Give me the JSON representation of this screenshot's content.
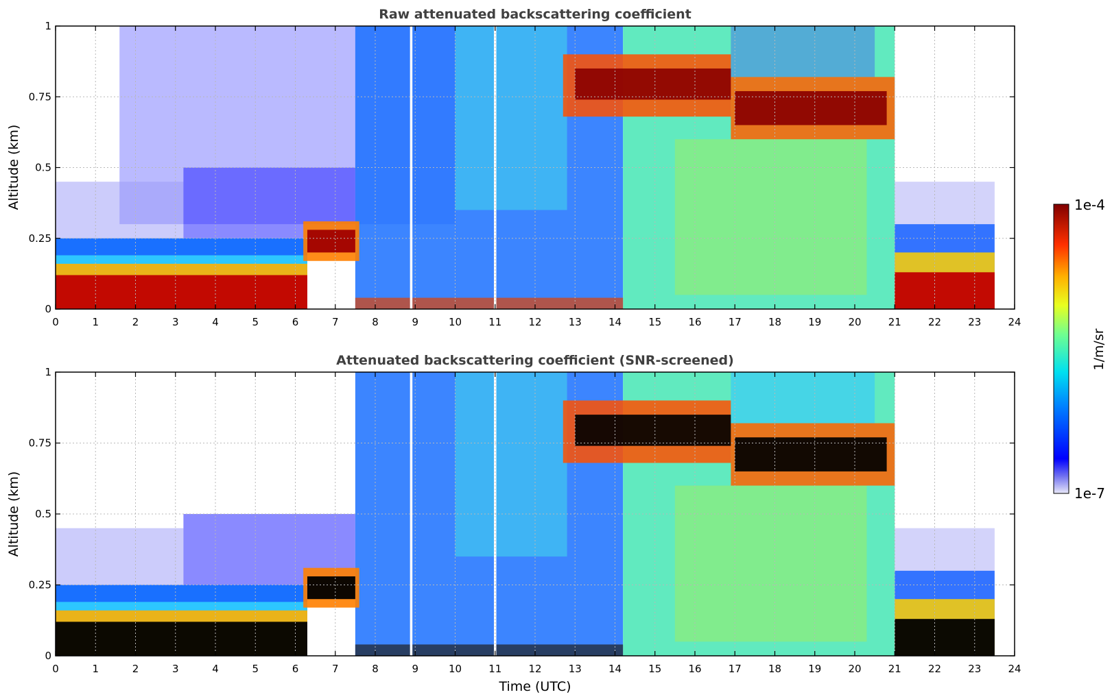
{
  "chart_data": [
    {
      "type": "heatmap",
      "title": "Raw attenuated backscattering coefficient",
      "xlabel": "",
      "ylabel": "Altitude (km)",
      "xlim": [
        0,
        24
      ],
      "ylim": [
        0,
        1
      ],
      "x_ticks": [
        "0",
        "1",
        "2",
        "3",
        "4",
        "5",
        "6",
        "7",
        "8",
        "9",
        "10",
        "11",
        "12",
        "13",
        "14",
        "15",
        "16",
        "17",
        "18",
        "19",
        "20",
        "21",
        "22",
        "23",
        "24"
      ],
      "y_ticks": [
        "0",
        "0.25",
        "0.5",
        "0.75",
        "1"
      ],
      "grid": true,
      "data_time_range_utc": [
        0,
        23.5
      ],
      "features": [
        {
          "type": "surface_layer",
          "t_start": 0,
          "t_end": 6.3,
          "top_km": 0.15
        },
        {
          "type": "elevated_layer",
          "t_start": 6.2,
          "t_end": 7.6,
          "base_km": 0.2,
          "top_km": 0.28
        },
        {
          "type": "cloud_layer",
          "t_start": 12.7,
          "t_end": 16.9,
          "base_km": 0.72,
          "top_km": 0.85
        },
        {
          "type": "cloud_layer",
          "t_start": 16.9,
          "t_end": 21.0,
          "base_km": 0.65,
          "top_km": 0.78
        },
        {
          "type": "surface_layer",
          "t_start": 21.0,
          "t_end": 23.5,
          "top_km": 0.15
        }
      ],
      "colorbar_range": [
        "1e-7",
        "1e-4"
      ]
    },
    {
      "type": "heatmap",
      "title": "Attenuated backscattering coefficient (SNR-screened)",
      "xlabel": "Time (UTC)",
      "ylabel": "Altitude (km)",
      "xlim": [
        0,
        24
      ],
      "ylim": [
        0,
        1
      ],
      "x_ticks": [
        "0",
        "1",
        "2",
        "3",
        "4",
        "5",
        "6",
        "7",
        "8",
        "9",
        "10",
        "11",
        "12",
        "13",
        "14",
        "15",
        "16",
        "17",
        "18",
        "19",
        "20",
        "21",
        "22",
        "23",
        "24"
      ],
      "y_ticks": [
        "0",
        "0.25",
        "0.5",
        "0.75",
        "1"
      ],
      "grid": true,
      "data_time_range_utc": [
        0,
        23.5
      ],
      "colorbar_range": [
        "1e-7",
        "1e-4"
      ]
    }
  ],
  "colorbar": {
    "label": "1/m/sr",
    "max_label": "1e-4",
    "min_label": "1e-7",
    "scale": "log"
  }
}
